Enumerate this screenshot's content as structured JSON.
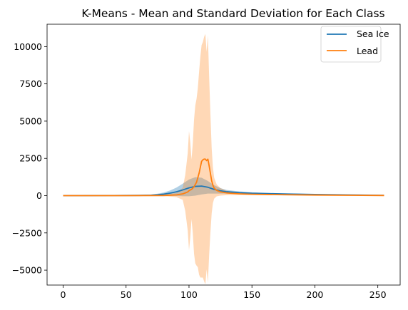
{
  "chart_data": {
    "type": "line",
    "title": "K-Means - Mean and Standard Deviation for Each Class",
    "xlabel": "",
    "ylabel": "",
    "xlim": [
      -12.75,
      267.75
    ],
    "ylim": [
      -6000,
      11500
    ],
    "x_ticks": [
      0,
      50,
      100,
      150,
      200,
      250
    ],
    "y_ticks": [
      -5000,
      -2500,
      0,
      2500,
      5000,
      7500,
      10000
    ],
    "y_tick_labels": [
      "−5000",
      "−2500",
      "0",
      "2500",
      "5000",
      "7500",
      "10000"
    ],
    "grid": false,
    "legend_position": "top-right",
    "series": [
      {
        "name": "Sea Ice",
        "color": "#1f77b4",
        "band_color": "#1f77b4",
        "band_opacity": 0.35,
        "points": [
          {
            "x": 0,
            "mean": 0,
            "std": 5
          },
          {
            "x": 40,
            "mean": 5,
            "std": 10
          },
          {
            "x": 60,
            "mean": 15,
            "std": 20
          },
          {
            "x": 70,
            "mean": 30,
            "std": 40
          },
          {
            "x": 75,
            "mean": 60,
            "std": 70
          },
          {
            "x": 80,
            "mean": 100,
            "std": 110
          },
          {
            "x": 85,
            "mean": 170,
            "std": 180
          },
          {
            "x": 90,
            "mean": 260,
            "std": 280
          },
          {
            "x": 95,
            "mean": 380,
            "std": 420
          },
          {
            "x": 100,
            "mean": 520,
            "std": 560
          },
          {
            "x": 105,
            "mean": 620,
            "std": 620
          },
          {
            "x": 110,
            "mean": 640,
            "std": 560
          },
          {
            "x": 115,
            "mean": 560,
            "std": 420
          },
          {
            "x": 120,
            "mean": 420,
            "std": 280
          },
          {
            "x": 125,
            "mean": 320,
            "std": 180
          },
          {
            "x": 130,
            "mean": 260,
            "std": 120
          },
          {
            "x": 140,
            "mean": 200,
            "std": 80
          },
          {
            "x": 150,
            "mean": 160,
            "std": 60
          },
          {
            "x": 175,
            "mean": 110,
            "std": 40
          },
          {
            "x": 200,
            "mean": 80,
            "std": 30
          },
          {
            "x": 225,
            "mean": 50,
            "std": 20
          },
          {
            "x": 255,
            "mean": 20,
            "std": 10
          }
        ]
      },
      {
        "name": "Lead",
        "color": "#ff7f0e",
        "band_color": "#ff7f0e",
        "band_opacity": 0.3,
        "points": [
          {
            "x": 0,
            "mean": 0,
            "std": 5
          },
          {
            "x": 50,
            "mean": 0,
            "std": 5
          },
          {
            "x": 80,
            "mean": 10,
            "std": 40
          },
          {
            "x": 90,
            "mean": 50,
            "std": 150
          },
          {
            "x": 95,
            "mean": 120,
            "std": 400
          },
          {
            "x": 97,
            "mean": 180,
            "std": 1200
          },
          {
            "x": 99,
            "mean": 250,
            "std": 2600
          },
          {
            "x": 100,
            "mean": 330,
            "std": 4000
          },
          {
            "x": 101,
            "mean": 380,
            "std": 3200
          },
          {
            "x": 102,
            "mean": 420,
            "std": 2000
          },
          {
            "x": 103,
            "mean": 500,
            "std": 3000
          },
          {
            "x": 104,
            "mean": 600,
            "std": 4500
          },
          {
            "x": 105,
            "mean": 750,
            "std": 5300
          },
          {
            "x": 106,
            "mean": 900,
            "std": 5600
          },
          {
            "x": 107,
            "mean": 1200,
            "std": 6000
          },
          {
            "x": 108,
            "mean": 1500,
            "std": 6800
          },
          {
            "x": 109,
            "mean": 1900,
            "std": 7400
          },
          {
            "x": 110,
            "mean": 2300,
            "std": 7800
          },
          {
            "x": 111,
            "mean": 2400,
            "std": 7900
          },
          {
            "x": 112,
            "mean": 2450,
            "std": 8200
          },
          {
            "x": 113,
            "mean": 2450,
            "std": 8400
          },
          {
            "x": 114,
            "mean": 2350,
            "std": 7300
          },
          {
            "x": 115,
            "mean": 2450,
            "std": 8300
          },
          {
            "x": 116,
            "mean": 2000,
            "std": 6000
          },
          {
            "x": 117,
            "mean": 1500,
            "std": 4000
          },
          {
            "x": 118,
            "mean": 1000,
            "std": 2200
          },
          {
            "x": 119,
            "mean": 700,
            "std": 1200
          },
          {
            "x": 120,
            "mean": 500,
            "std": 700
          },
          {
            "x": 122,
            "mean": 350,
            "std": 400
          },
          {
            "x": 125,
            "mean": 250,
            "std": 250
          },
          {
            "x": 130,
            "mean": 180,
            "std": 150
          },
          {
            "x": 140,
            "mean": 120,
            "std": 80
          },
          {
            "x": 150,
            "mean": 90,
            "std": 50
          },
          {
            "x": 175,
            "mean": 60,
            "std": 30
          },
          {
            "x": 200,
            "mean": 40,
            "std": 20
          },
          {
            "x": 225,
            "mean": 25,
            "std": 10
          },
          {
            "x": 255,
            "mean": 10,
            "std": 5
          }
        ]
      }
    ]
  }
}
